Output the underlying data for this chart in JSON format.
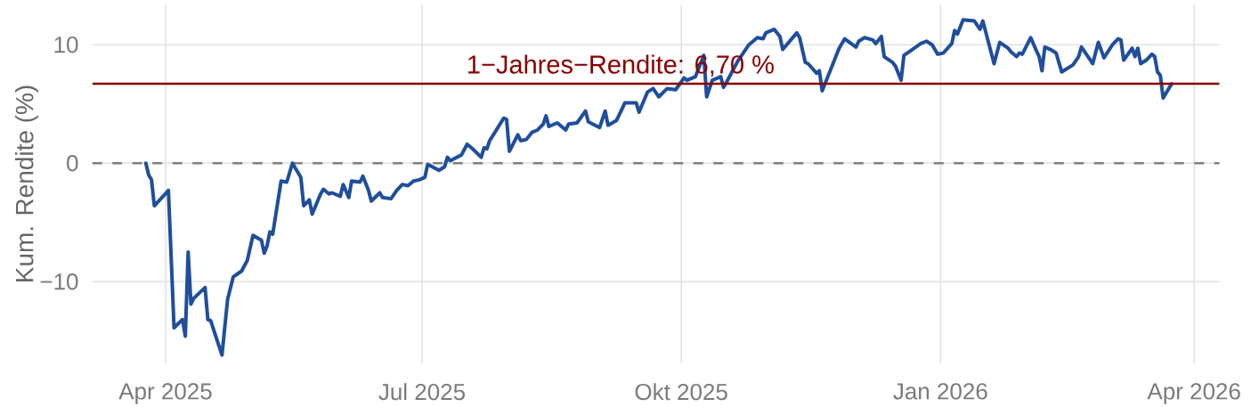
{
  "chart_data": {
    "type": "line",
    "ylabel": "Kum. Rendite (%)",
    "x": [
      "2025-03-25",
      "2025-03-26",
      "2025-03-27",
      "2025-03-28",
      "2025-04-02",
      "2025-04-04",
      "2025-04-07",
      "2025-04-08",
      "2025-04-09",
      "2025-04-10",
      "2025-04-11",
      "2025-04-15",
      "2025-04-16",
      "2025-04-17",
      "2025-04-21",
      "2025-04-23",
      "2025-04-25",
      "2025-04-28",
      "2025-04-30",
      "2025-05-02",
      "2025-05-05",
      "2025-05-06",
      "2025-05-07",
      "2025-05-08",
      "2025-05-09",
      "2025-05-12",
      "2025-05-14",
      "2025-05-16",
      "2025-05-19",
      "2025-05-20",
      "2025-05-22",
      "2025-05-23",
      "2025-05-26",
      "2025-05-27",
      "2025-05-29",
      "2025-05-30",
      "2025-06-02",
      "2025-06-03",
      "2025-06-05",
      "2025-06-06",
      "2025-06-09",
      "2025-06-10",
      "2025-06-12",
      "2025-06-13",
      "2025-06-16",
      "2025-06-17",
      "2025-06-20",
      "2025-06-22",
      "2025-06-24",
      "2025-06-26",
      "2025-06-28",
      "2025-06-30",
      "2025-07-02",
      "2025-07-03",
      "2025-07-07",
      "2025-07-09",
      "2025-07-10",
      "2025-07-11",
      "2025-07-15",
      "2025-07-17",
      "2025-07-19",
      "2025-07-22",
      "2025-07-23",
      "2025-07-24",
      "2025-07-25",
      "2025-07-30",
      "2025-07-31",
      "2025-08-01",
      "2025-08-04",
      "2025-08-05",
      "2025-08-07",
      "2025-08-09",
      "2025-08-11",
      "2025-08-13",
      "2025-08-14",
      "2025-08-15",
      "2025-08-18",
      "2025-08-21",
      "2025-08-22",
      "2025-08-25",
      "2025-08-28",
      "2025-08-29",
      "2025-09-02",
      "2025-09-04",
      "2025-09-05",
      "2025-09-08",
      "2025-09-11",
      "2025-09-15",
      "2025-09-16",
      "2025-09-19",
      "2025-09-21",
      "2025-09-23",
      "2025-09-26",
      "2025-09-29",
      "2025-10-02",
      "2025-10-03",
      "2025-10-06",
      "2025-10-09",
      "2025-10-10",
      "2025-10-12",
      "2025-10-15",
      "2025-10-16",
      "2025-10-17",
      "2025-10-21",
      "2025-10-25",
      "2025-10-28",
      "2025-10-30",
      "2025-10-31",
      "2025-11-03",
      "2025-11-05",
      "2025-11-06",
      "2025-11-11",
      "2025-11-12",
      "2025-11-14",
      "2025-11-15",
      "2025-11-18",
      "2025-11-19",
      "2025-11-20",
      "2025-11-22",
      "2025-11-26",
      "2025-11-28",
      "2025-12-02",
      "2025-12-03",
      "2025-12-05",
      "2025-12-08",
      "2025-12-09",
      "2025-12-11",
      "2025-12-12",
      "2025-12-15",
      "2025-12-16",
      "2025-12-18",
      "2025-12-19",
      "2025-12-22",
      "2025-12-25",
      "2025-12-27",
      "2025-12-29",
      "2025-12-31",
      "2026-01-02",
      "2026-01-05",
      "2026-01-06",
      "2026-01-07",
      "2026-01-09",
      "2026-01-13",
      "2026-01-15",
      "2026-01-16",
      "2026-01-20",
      "2026-01-22",
      "2026-01-25",
      "2026-01-26",
      "2026-01-28",
      "2026-01-29",
      "2026-01-30",
      "2026-02-02",
      "2026-02-04",
      "2026-02-05",
      "2026-02-06",
      "2026-02-07",
      "2026-02-09",
      "2026-02-11",
      "2026-02-13",
      "2026-02-17",
      "2026-02-19",
      "2026-02-20",
      "2026-02-24",
      "2026-02-26",
      "2026-02-28",
      "2026-03-03",
      "2026-03-05",
      "2026-03-06",
      "2026-03-07",
      "2026-03-10",
      "2026-03-11",
      "2026-03-12",
      "2026-03-13",
      "2026-03-15",
      "2026-03-17",
      "2026-03-18",
      "2026-03-19",
      "2026-03-20",
      "2026-03-21",
      "2026-03-24"
    ],
    "values": [
      0.0,
      -1.0,
      -1.4,
      -3.6,
      -2.3,
      -13.9,
      -13.2,
      -14.6,
      -7.5,
      -11.9,
      -11.4,
      -10.5,
      -13.2,
      -13.3,
      -16.2,
      -11.5,
      -9.6,
      -9.1,
      -8.2,
      -6.1,
      -6.5,
      -7.6,
      -7.0,
      -5.8,
      -6.0,
      -1.5,
      -1.6,
      0.0,
      -1.2,
      -3.6,
      -3.1,
      -4.3,
      -2.6,
      -2.2,
      -2.6,
      -2.5,
      -2.8,
      -1.8,
      -2.9,
      -1.5,
      -1.6,
      -1.1,
      -2.3,
      -3.2,
      -2.5,
      -2.9,
      -3.0,
      -2.3,
      -1.8,
      -1.9,
      -1.5,
      -1.4,
      -1.2,
      -0.1,
      -0.6,
      -0.3,
      0.5,
      0.2,
      0.7,
      1.6,
      1.2,
      0.5,
      1.3,
      1.2,
      1.9,
      3.8,
      3.7,
      1.0,
      2.4,
      1.9,
      2.0,
      2.6,
      2.8,
      3.3,
      4.0,
      3.1,
      3.4,
      2.8,
      3.3,
      3.4,
      4.4,
      3.5,
      3.0,
      4.4,
      3.2,
      3.6,
      5.1,
      5.1,
      4.3,
      6.0,
      6.3,
      5.6,
      6.3,
      6.2,
      7.2,
      7.0,
      7.3,
      9.1,
      5.6,
      7.0,
      7.3,
      6.4,
      6.8,
      8.6,
      10.0,
      10.6,
      10.5,
      11.0,
      11.3,
      10.7,
      9.6,
      11.0,
      10.6,
      8.5,
      8.4,
      7.6,
      7.8,
      6.1,
      7.3,
      9.7,
      10.5,
      9.8,
      10.3,
      10.6,
      10.4,
      10.1,
      10.7,
      9.0,
      8.5,
      8.2,
      7.0,
      9.1,
      9.6,
      10.1,
      10.3,
      10.0,
      9.2,
      9.3,
      10.1,
      11.2,
      10.9,
      12.1,
      12.0,
      11.3,
      12.0,
      8.4,
      10.2,
      9.7,
      9.4,
      9.0,
      9.3,
      9.2,
      10.6,
      9.5,
      9.0,
      7.8,
      9.8,
      9.6,
      9.3,
      7.7,
      8.3,
      9.0,
      9.8,
      8.4,
      10.2,
      8.9,
      10.0,
      10.5,
      10.4,
      8.7,
      9.7,
      9.0,
      9.7,
      8.4,
      8.7,
      9.2,
      9.0,
      7.7,
      7.4,
      5.5,
      6.7
    ],
    "color": "#1f4e9c",
    "xlim": [
      "2025-03-06",
      "2026-04-10"
    ],
    "xticks": [
      {
        "value": "2025-04-01",
        "label": "Apr 2025"
      },
      {
        "value": "2025-07-01",
        "label": "Jul 2025"
      },
      {
        "value": "2025-10-01",
        "label": "Okt 2025"
      },
      {
        "value": "2026-01-01",
        "label": "Jan 2026"
      },
      {
        "value": "2026-04-01",
        "label": "Apr 2026"
      }
    ],
    "ylim": [
      -16.9,
      13.4
    ],
    "yticks": [
      {
        "value": -10,
        "label": "−10"
      },
      0,
      10
    ],
    "grid": true,
    "ref_lines": [
      {
        "axis": "y",
        "value": 0,
        "line_style": "dashed",
        "color": "#7f7f7f"
      },
      {
        "axis": "y",
        "value": 6.7,
        "label": "1−Jahres−Rendite: 6,70 %",
        "line_style": "solid",
        "color": "#8b0000"
      }
    ]
  }
}
